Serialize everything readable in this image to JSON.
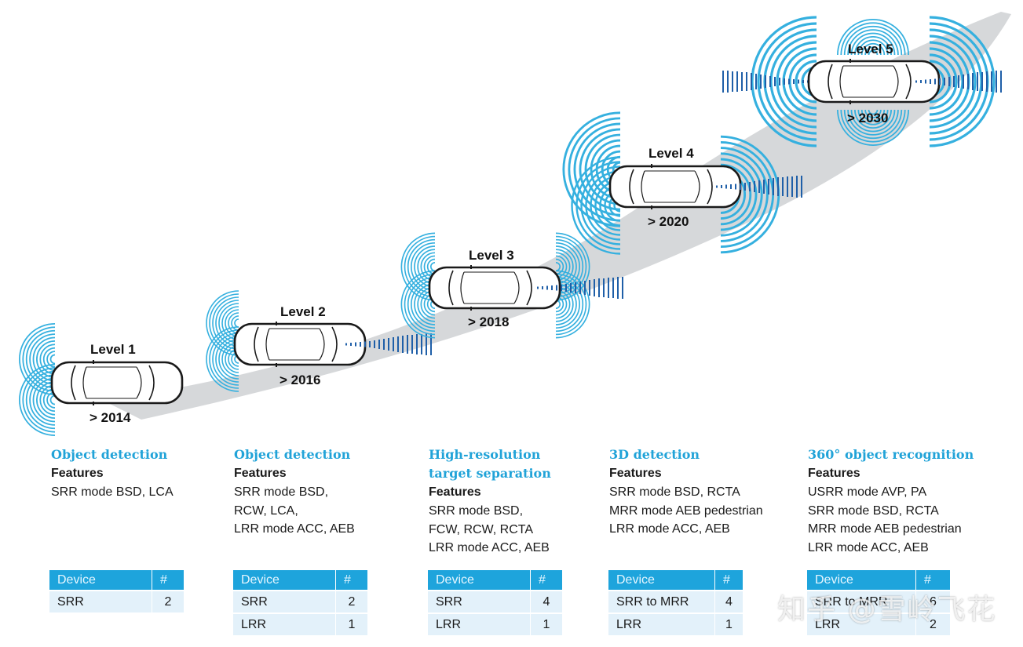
{
  "levels": [
    {
      "label": "Level 1",
      "year": "> 2014"
    },
    {
      "label": "Level 2",
      "year": "> 2016"
    },
    {
      "label": "Level 3",
      "year": "> 2018"
    },
    {
      "label": "Level 4",
      "year": "> 2020"
    },
    {
      "label": "Level 5",
      "year": "> 2030"
    }
  ],
  "columns": [
    {
      "title": [
        "Object detection"
      ],
      "features_heading": "Features",
      "features": [
        "SRR mode BSD, LCA"
      ],
      "table": {
        "headers": [
          "Device",
          "#"
        ],
        "rows": [
          [
            "SRR",
            "2"
          ]
        ]
      }
    },
    {
      "title": [
        "Object detection"
      ],
      "features_heading": "Features",
      "features": [
        "SRR mode BSD,",
        "RCW, LCA,",
        "LRR mode ACC, AEB"
      ],
      "table": {
        "headers": [
          "Device",
          "#"
        ],
        "rows": [
          [
            "SRR",
            "2"
          ],
          [
            "LRR",
            "1"
          ]
        ]
      }
    },
    {
      "title": [
        "High-resolution",
        "target separation"
      ],
      "features_heading": "Features",
      "features": [
        "SRR mode BSD,",
        "FCW, RCW, RCTA",
        "LRR mode ACC, AEB"
      ],
      "table": {
        "headers": [
          "Device",
          "#"
        ],
        "rows": [
          [
            "SRR",
            "4"
          ],
          [
            "LRR",
            "1"
          ]
        ]
      }
    },
    {
      "title": [
        "3D detection"
      ],
      "features_heading": "Features",
      "features": [
        "SRR mode BSD, RCTA",
        "MRR mode AEB pedestrian",
        "LRR mode ACC, AEB"
      ],
      "table": {
        "headers": [
          "Device",
          "#"
        ],
        "rows": [
          [
            "SRR to MRR",
            "4"
          ],
          [
            "LRR",
            "1"
          ]
        ]
      }
    },
    {
      "title": [
        "360° object recognition"
      ],
      "features_heading": "Features",
      "features": [
        "USRR mode AVP, PA",
        "SRR mode BSD, RCTA",
        "MRR mode AEB pedestrian",
        "LRR mode ACC, AEB"
      ],
      "table": {
        "headers": [
          "Device",
          "#"
        ],
        "rows": [
          [
            "SRR to MRR",
            "6"
          ],
          [
            "LRR",
            "2"
          ]
        ]
      }
    }
  ],
  "watermark": "知乎 @雪岭飞花",
  "colors": {
    "accent": "#21a3d8",
    "header_bg": "#1ea4dc",
    "cell_bg": "#e3f1fa",
    "road": "#d4d6d8"
  }
}
